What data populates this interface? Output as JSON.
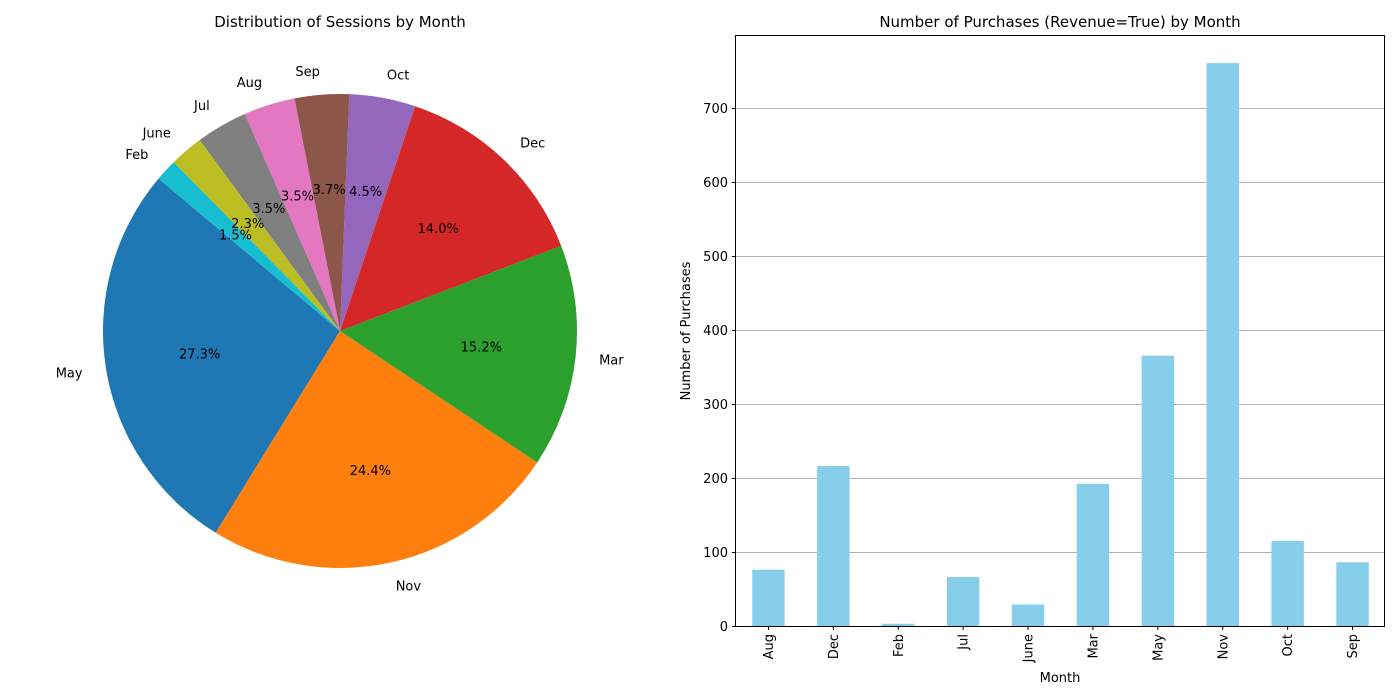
{
  "chart_data": [
    {
      "type": "pie",
      "title": "Distribution of Sessions by Month",
      "start_angle_deg": 140,
      "direction": "counterclockwise",
      "slices": [
        {
          "label": "May",
          "percent": 27.3,
          "pct_label": "27.3%",
          "color": "#1f77b4"
        },
        {
          "label": "Nov",
          "percent": 24.4,
          "pct_label": "24.4%",
          "color": "#ff7f0e"
        },
        {
          "label": "Mar",
          "percent": 15.2,
          "pct_label": "15.2%",
          "color": "#2ca02c"
        },
        {
          "label": "Dec",
          "percent": 14.0,
          "pct_label": "14.0%",
          "color": "#d62728"
        },
        {
          "label": "Oct",
          "percent": 4.5,
          "pct_label": "4.5%",
          "color": "#9467bd"
        },
        {
          "label": "Sep",
          "percent": 3.7,
          "pct_label": "3.7%",
          "color": "#8c564b"
        },
        {
          "label": "Aug",
          "percent": 3.5,
          "pct_label": "3.5%",
          "color": "#e377c2"
        },
        {
          "label": "Jul",
          "percent": 3.5,
          "pct_label": "3.5%",
          "color": "#7f7f7f"
        },
        {
          "label": "June",
          "percent": 2.3,
          "pct_label": "2.3%",
          "color": "#bcbd22"
        },
        {
          "label": "Feb",
          "percent": 1.5,
          "pct_label": "1.5%",
          "color": "#17becf"
        }
      ]
    },
    {
      "type": "bar",
      "title": "Number of Purchases (Revenue=True) by Month",
      "xlabel": "Month",
      "ylabel": "Number of Purchases",
      "categories": [
        "Aug",
        "Dec",
        "Feb",
        "Jul",
        "June",
        "Mar",
        "May",
        "Nov",
        "Oct",
        "Sep"
      ],
      "values": [
        76,
        216,
        3,
        66,
        29,
        192,
        365,
        760,
        115,
        86
      ],
      "ylim": [
        0,
        798
      ],
      "yticks": [
        0,
        100,
        200,
        300,
        400,
        500,
        600,
        700
      ],
      "bar_color": "#87ceeb",
      "grid": "y",
      "xtick_rotation": "vertical"
    }
  ]
}
